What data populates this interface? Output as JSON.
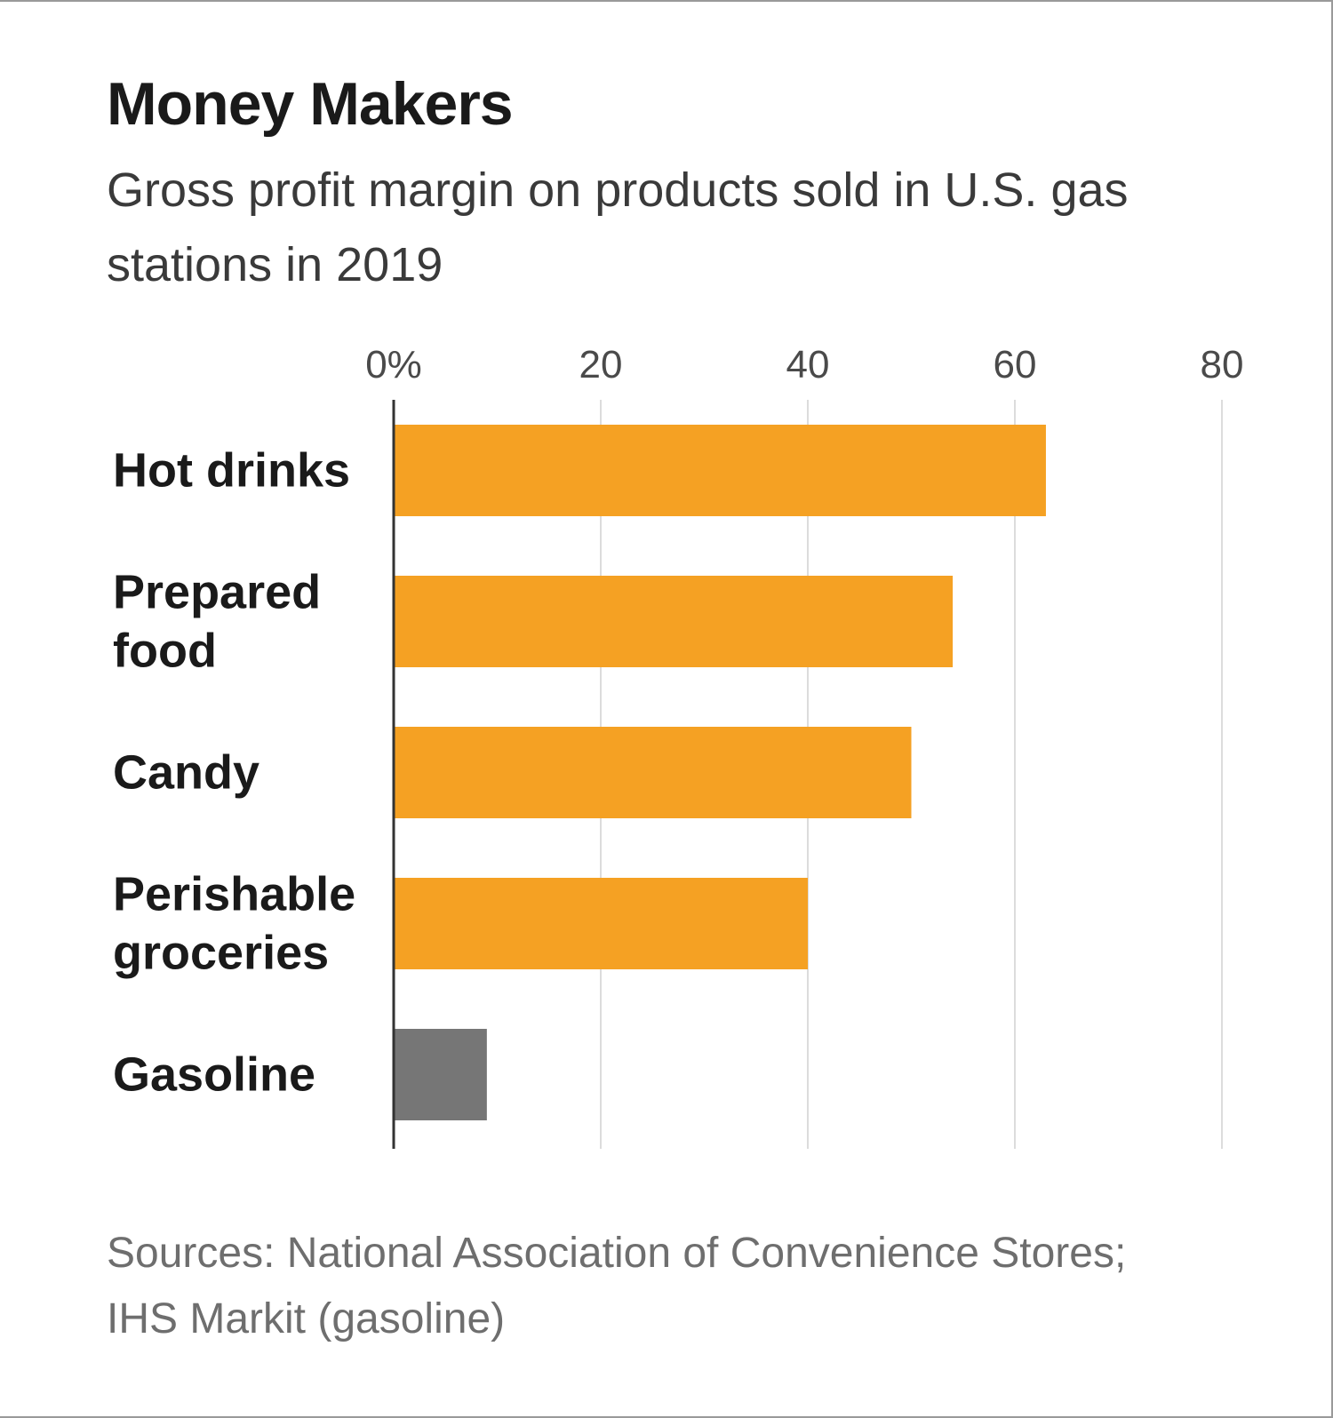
{
  "title": "Money Makers",
  "subtitle": "Gross profit margin on products sold in U.S. gas stations in 2019",
  "source": "Sources: National Association of Convenience Stores; IHS Markit (gasoline)",
  "colors": {
    "highlight": "#F5A123",
    "baseline_bar": "#767676"
  },
  "chart_data": {
    "type": "bar",
    "orientation": "horizontal",
    "categories": [
      "Hot drinks",
      "Prepared food",
      "Candy",
      "Perishable groceries",
      "Gasoline"
    ],
    "category_lines": [
      [
        "Hot drinks"
      ],
      [
        "Prepared",
        "food"
      ],
      [
        "Candy"
      ],
      [
        "Perishable",
        "groceries"
      ],
      [
        "Gasoline"
      ]
    ],
    "values": [
      63,
      54,
      50,
      40,
      9
    ],
    "bar_colors": [
      "#F5A123",
      "#F5A123",
      "#F5A123",
      "#F5A123",
      "#767676"
    ],
    "xlim": [
      0,
      80
    ],
    "xticks": [
      0,
      20,
      40,
      60,
      80
    ],
    "xtick_labels": [
      "0%",
      "20",
      "40",
      "60",
      "80"
    ],
    "grid": true,
    "axis_position": "top"
  }
}
